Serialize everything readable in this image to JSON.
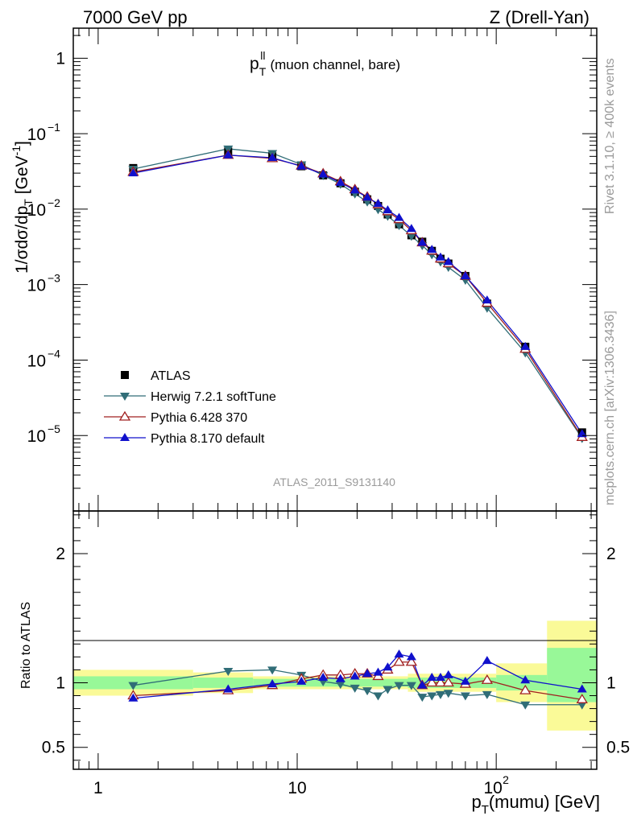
{
  "header": {
    "left": "7000 GeV pp",
    "right": "Z (Drell-Yan)"
  },
  "plot_title": {
    "var": "p",
    "sup": "ll",
    "sub": "T",
    "rest": "(muon channel, bare)"
  },
  "side_text": {
    "rivet": "Rivet 3.1.10, ≥ 400k events",
    "mcplots": "mcplots.cern.ch [arXiv:1306.3436]"
  },
  "analysis_label": "ATLAS_2011_S9131140",
  "colors": {
    "atlas": "#000000",
    "herwig": "#306d77",
    "pythia6": "#a02020",
    "pythia8": "#1010cc",
    "band_inner": "#98f898",
    "band_outer": "#fafa98"
  },
  "chart_data": [
    {
      "type": "scatter",
      "title": "p_T^ll (muon channel, bare)",
      "xlabel": "p_T(mumu) [GeV]",
      "ylabel": "1/σdσ/dp_T [GeV^-1]",
      "xscale": "log",
      "yscale": "log",
      "xlim": [
        0.75,
        320
      ],
      "ylim": [
        1e-06,
        2.5
      ],
      "y_ticks": [
        {
          "label": "1",
          "base": "",
          "exp": ""
        },
        {
          "label": "10",
          "base": "10",
          "exp": "−1"
        },
        {
          "label": "10",
          "base": "10",
          "exp": "−2"
        },
        {
          "label": "10",
          "base": "10",
          "exp": "−3"
        },
        {
          "label": "10",
          "base": "10",
          "exp": "−4"
        },
        {
          "label": "10",
          "base": "10",
          "exp": "−5"
        }
      ],
      "x": [
        1.5,
        4.5,
        7.5,
        10.5,
        13.5,
        16.5,
        19.5,
        22.5,
        25.5,
        28.5,
        32.5,
        37.5,
        42.5,
        47.5,
        52.5,
        57.5,
        70,
        90,
        140,
        270
      ],
      "series": [
        {
          "name": "ATLAS",
          "key": "atlas",
          "marker": "square",
          "values": [
            0.035,
            0.058,
            0.05,
            0.037,
            0.028,
            0.022,
            0.017,
            0.0135,
            0.011,
            0.0085,
            0.0063,
            0.0045,
            0.0037,
            0.0028,
            0.0022,
            0.0019,
            0.0013,
            0.00056,
            0.00015,
            1.1e-05
          ]
        },
        {
          "name": "Herwig 7.2.1 softTune",
          "key": "herwig",
          "marker": "triangle-down",
          "values": [
            0.034,
            0.063,
            0.055,
            0.039,
            0.028,
            0.0215,
            0.016,
            0.0125,
            0.0099,
            0.0081,
            0.0061,
            0.0044,
            0.0033,
            0.0025,
            0.002,
            0.0017,
            0.00115,
            0.00049,
            0.000125,
            9.2e-06
          ]
        },
        {
          "name": "Pythia 6.428 370",
          "key": "pythia6",
          "marker": "triangle-up-open",
          "values": [
            0.031,
            0.052,
            0.047,
            0.0375,
            0.0295,
            0.0232,
            0.0182,
            0.0145,
            0.0115,
            0.0093,
            0.0073,
            0.0052,
            0.0036,
            0.0028,
            0.0022,
            0.0019,
            0.0013,
            0.00057,
            0.00014,
            9.5e-06
          ]
        },
        {
          "name": "Pythia 8.170 default",
          "key": "pythia8",
          "marker": "triangle-up",
          "values": [
            0.03,
            0.052,
            0.048,
            0.037,
            0.029,
            0.0225,
            0.0178,
            0.0143,
            0.0118,
            0.0097,
            0.0077,
            0.0055,
            0.0036,
            0.0029,
            0.0023,
            0.002,
            0.0013,
            0.00062,
            0.00015,
            1.05e-05
          ]
        }
      ]
    },
    {
      "type": "scatter",
      "title": "",
      "xlabel": "p_T(mumu) [GeV]",
      "ylabel": "Ratio to ATLAS",
      "xscale": "log",
      "yscale": "linear",
      "xlim": [
        0.75,
        320
      ],
      "ylim": [
        0.33,
        2.33
      ],
      "y_ticks": [
        "0.5",
        "1",
        "2"
      ],
      "x_ticks": [
        {
          "base": "1",
          "exp": ""
        },
        {
          "base": "10",
          "exp": ""
        },
        {
          "base": "10",
          "exp": "2"
        }
      ],
      "x": [
        1.5,
        4.5,
        7.5,
        10.5,
        13.5,
        16.5,
        19.5,
        22.5,
        25.5,
        28.5,
        32.5,
        37.5,
        42.5,
        47.5,
        52.5,
        57.5,
        70,
        90,
        140,
        270
      ],
      "bands": [
        {
          "x_from": 0.75,
          "x_to": 3,
          "inner": [
            0.95,
            1.05
          ],
          "outer": [
            0.9,
            1.1
          ]
        },
        {
          "x_from": 3,
          "x_to": 6,
          "inner": [
            0.96,
            1.04
          ],
          "outer": [
            0.92,
            1.08
          ]
        },
        {
          "x_from": 6,
          "x_to": 36,
          "inner": [
            0.97,
            1.03
          ],
          "outer": [
            0.95,
            1.05
          ]
        },
        {
          "x_from": 36,
          "x_to": 100,
          "inner": [
            0.96,
            1.04
          ],
          "outer": [
            0.93,
            1.07
          ]
        },
        {
          "x_from": 100,
          "x_to": 180,
          "inner": [
            0.94,
            1.06
          ],
          "outer": [
            0.85,
            1.15
          ]
        },
        {
          "x_from": 180,
          "x_to": 320,
          "inner": [
            0.85,
            1.27
          ],
          "outer": [
            0.63,
            1.48
          ]
        }
      ],
      "series": [
        {
          "name": "Herwig 7.2.1 softTune",
          "key": "herwig",
          "marker": "triangle-down",
          "values": [
            0.98,
            1.09,
            1.1,
            1.06,
            1.01,
            0.99,
            0.96,
            0.94,
            0.9,
            0.95,
            0.98,
            0.98,
            0.89,
            0.9,
            0.91,
            0.92,
            0.9,
            0.91,
            0.83,
            0.83
          ]
        },
        {
          "name": "Pythia 6.428 370",
          "key": "pythia6",
          "marker": "triangle-up-open",
          "values": [
            0.9,
            0.94,
            0.98,
            1.03,
            1.06,
            1.06,
            1.07,
            1.07,
            1.05,
            1.1,
            1.16,
            1.16,
            0.98,
            1.0,
            1.0,
            1.0,
            0.99,
            1.02,
            0.94,
            0.87
          ]
        },
        {
          "name": "Pythia 8.170 default",
          "key": "pythia8",
          "marker": "triangle-up",
          "values": [
            0.88,
            0.95,
            0.99,
            1.01,
            1.04,
            1.03,
            1.05,
            1.07,
            1.08,
            1.12,
            1.22,
            1.2,
            0.98,
            1.04,
            1.04,
            1.06,
            1.01,
            1.17,
            1.02,
            0.95
          ]
        }
      ]
    }
  ]
}
